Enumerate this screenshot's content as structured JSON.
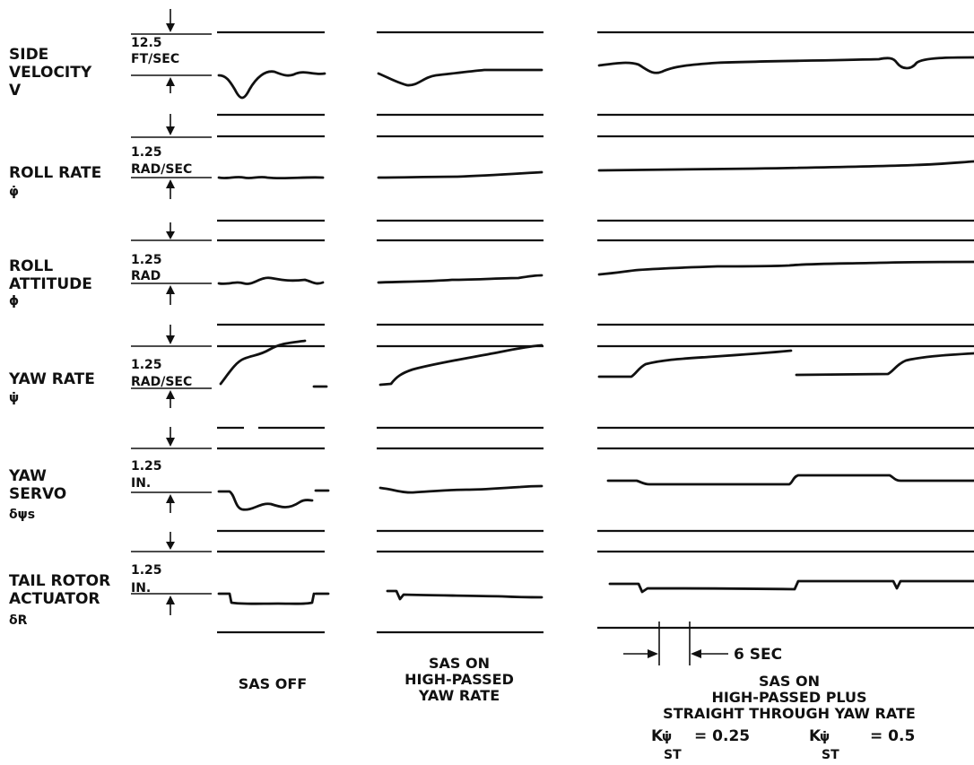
{
  "channels": [
    {
      "name_lines": [
        "SIDE",
        "VELOCITY",
        "V"
      ],
      "scale": "12.5",
      "units": "FT/SEC"
    },
    {
      "name_lines": [
        "ROLL RATE",
        "φ̇"
      ],
      "scale": "1.25",
      "units": "RAD/SEC"
    },
    {
      "name_lines": [
        "ROLL",
        "ATTITUDE",
        "ϕ"
      ],
      "scale": "1.25",
      "units": "RAD"
    },
    {
      "name_lines": [
        "YAW RATE",
        "ψ̇"
      ],
      "scale": "1.25",
      "units": "RAD/SEC"
    },
    {
      "name_lines": [
        "YAW",
        "SERVO",
        "δψs"
      ],
      "scale": "1.25",
      "units": "IN."
    },
    {
      "name_lines": [
        "TAIL ROTOR",
        "ACTUATOR",
        "δR"
      ],
      "scale": "1.25",
      "units": "IN."
    }
  ],
  "columns": {
    "sas_off": [
      "SAS OFF"
    ],
    "sas_on_hp": [
      "SAS ON",
      "HIGH-PASSED",
      "YAW RATE"
    ],
    "sas_on_hp_st": [
      "SAS ON",
      "HIGH-PASSED PLUS",
      "STRAIGHT THROUGH YAW RATE"
    ]
  },
  "gain_symbol": "K",
  "gain_subscript": "ST",
  "gain_values": [
    "= 0.25",
    "= 0.5"
  ],
  "time_scale": "6 SEC"
}
